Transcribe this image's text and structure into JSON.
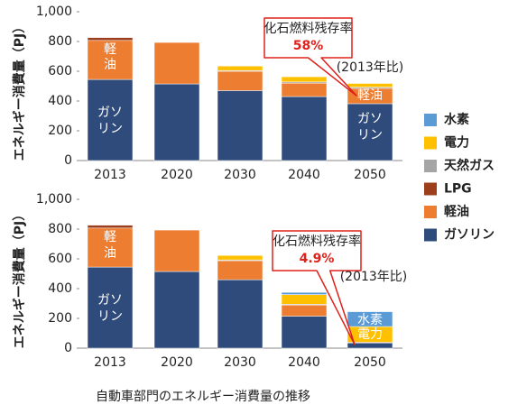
{
  "chart_data": [
    {
      "type": "bar",
      "stacked": true,
      "y_label": "エネルギー消費量（PJ）",
      "categories": [
        "2013",
        "2020",
        "2030",
        "2040",
        "2050"
      ],
      "ylim": [
        0,
        1000
      ],
      "yticks": [
        0,
        200,
        400,
        600,
        800,
        {
          "value": 1000,
          "label": "1,000"
        }
      ],
      "series": [
        {
          "name": "ガソリン",
          "color": "#2f4b7c",
          "values": [
            545,
            515,
            470,
            430,
            382
          ]
        },
        {
          "name": "軽油",
          "color": "#ed7d31",
          "values": [
            262,
            279,
            130,
            90,
            103
          ]
        },
        {
          "name": "LPG",
          "color": "#9c3d1c",
          "values": [
            20,
            3,
            0,
            0,
            0
          ]
        },
        {
          "name": "天然ガス",
          "color": "#a5a5a5",
          "values": [
            2,
            0,
            5,
            8,
            8
          ]
        },
        {
          "name": "電力",
          "color": "#ffc000",
          "values": [
            0,
            0,
            30,
            35,
            25
          ]
        },
        {
          "name": "水素",
          "color": "#5b9bd5",
          "values": [
            0,
            0,
            0,
            0,
            0
          ]
        }
      ],
      "bar_labels": [
        [
          "軽",
          "油"
        ],
        [
          "ガソ",
          "リン"
        ],
        [
          "軽油"
        ],
        [
          "ガソ",
          "リン"
        ]
      ],
      "callout": {
        "title": "化石燃料残存率",
        "value": "58%",
        "note": "(2013年比)"
      }
    },
    {
      "type": "bar",
      "stacked": true,
      "y_label": "エネルギー消費量（PJ）",
      "categories": [
        "2013",
        "2020",
        "2030",
        "2040",
        "2050"
      ],
      "ylim": [
        0,
        1000
      ],
      "yticks": [
        0,
        200,
        400,
        600,
        800,
        {
          "value": 1000,
          "label": "1,000"
        }
      ],
      "series": [
        {
          "name": "ガソリン",
          "color": "#2f4b7c",
          "values": [
            545,
            515,
            460,
            215,
            35
          ]
        },
        {
          "name": "軽油",
          "color": "#ed7d31",
          "values": [
            262,
            279,
            128,
            75,
            5
          ]
        },
        {
          "name": "LPG",
          "color": "#9c3d1c",
          "values": [
            20,
            3,
            0,
            0,
            0
          ]
        },
        {
          "name": "天然ガス",
          "color": "#a5a5a5",
          "values": [
            2,
            0,
            5,
            5,
            0
          ]
        },
        {
          "name": "電力",
          "color": "#ffc000",
          "values": [
            0,
            0,
            30,
            65,
            105
          ]
        },
        {
          "name": "水素",
          "color": "#5b9bd5",
          "values": [
            0,
            0,
            0,
            15,
            100
          ]
        }
      ],
      "bar_labels": [
        [
          "軽",
          "油"
        ],
        [
          "ガソ",
          "リン"
        ],
        [
          "水素"
        ],
        [
          "電力"
        ]
      ],
      "callout": {
        "title": "化石燃料残存率",
        "value": "4.9%",
        "note": "(2013年比)"
      }
    }
  ],
  "caption": "自動車部門のエネルギー消費量の推移"
}
